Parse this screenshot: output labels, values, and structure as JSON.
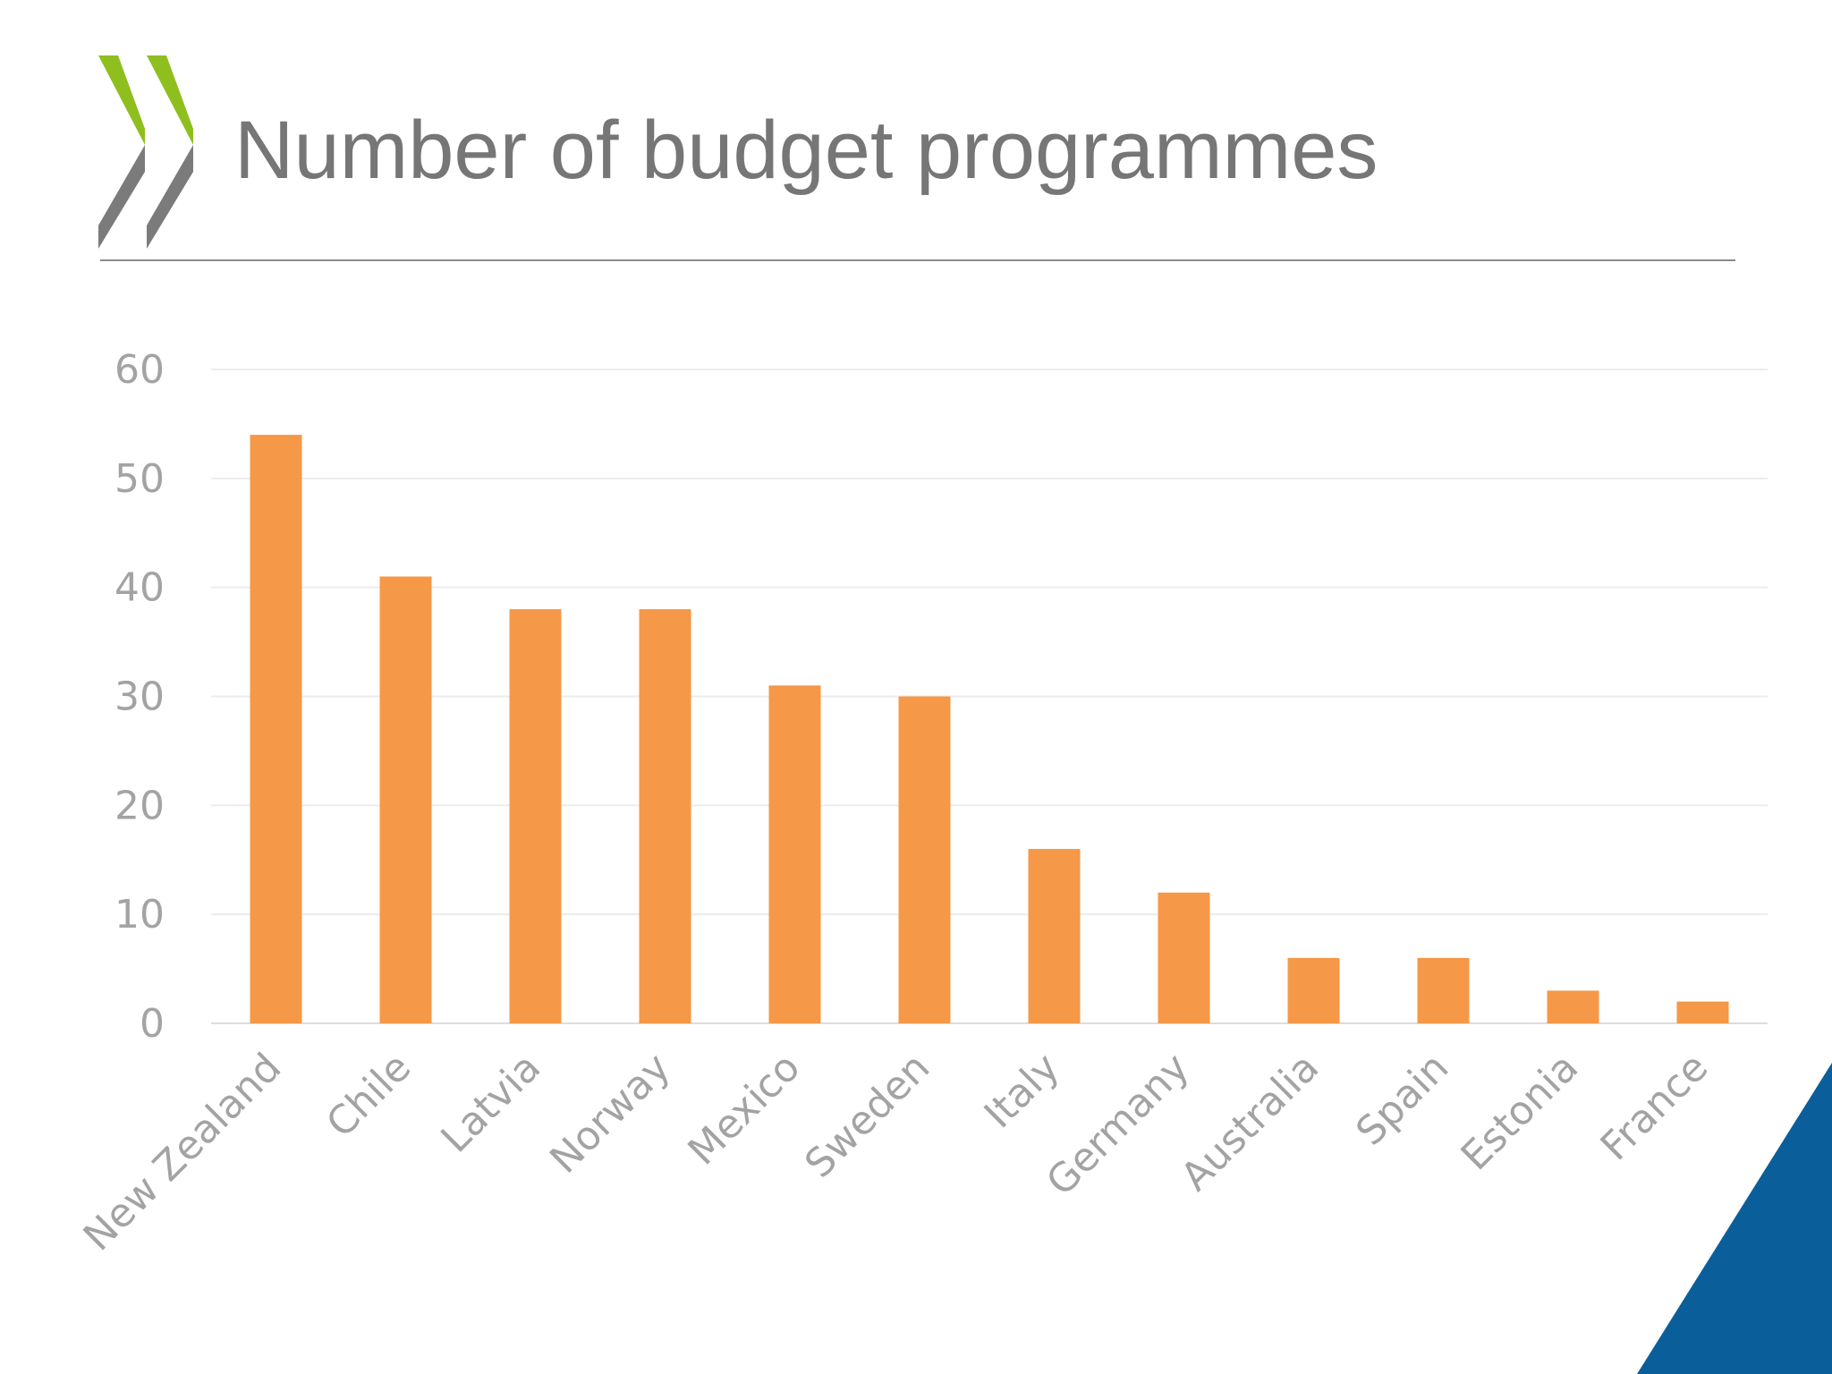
{
  "slide": {
    "title": "Number of budget programmes",
    "colors": {
      "bar": "#f59847",
      "logo_green": "#8ebf1f",
      "logo_grey": "#7b7b7b",
      "corner_blue": "#0a5f9a",
      "text_grey": "#767676",
      "axis_text": "#a3a3a3"
    }
  },
  "chart_data": {
    "type": "bar",
    "title": "",
    "xlabel": "",
    "ylabel": "",
    "categories": [
      "New Zealand",
      "Chile",
      "Latvia",
      "Norway",
      "Mexico",
      "Sweden",
      "Italy",
      "Germany",
      "Australia",
      "Spain",
      "Estonia",
      "France"
    ],
    "values": [
      54,
      41,
      38,
      38,
      31,
      30,
      16,
      12,
      6,
      6,
      3,
      2
    ],
    "ylim": [
      0,
      60
    ],
    "yticks": [
      "0",
      "10",
      "20",
      "30",
      "40",
      "50",
      "60"
    ],
    "grid": true,
    "legend": "none"
  }
}
